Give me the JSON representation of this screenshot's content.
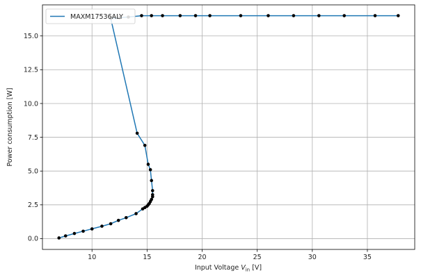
{
  "chart_data": {
    "type": "line",
    "title": "",
    "xlabel_prefix": "Input Voltage ",
    "xlabel_var": "V",
    "xlabel_sub": "in",
    "xlabel_suffix": " [V]",
    "ylabel": "Power consumption [W]",
    "xlim": [
      5.5,
      39.3
    ],
    "ylim": [
      -0.8,
      17.3
    ],
    "xticks": [
      10,
      15,
      20,
      25,
      30,
      35
    ],
    "xtick_labels": [
      "10",
      "15",
      "20",
      "25",
      "30",
      "35"
    ],
    "yticks": [
      0.0,
      2.5,
      5.0,
      7.5,
      10.0,
      12.5,
      15.0
    ],
    "ytick_labels": [
      "0.0",
      "2.5",
      "5.0",
      "7.5",
      "10.0",
      "12.5",
      "15.0"
    ],
    "grid": true,
    "legend_position": "top-left",
    "series": [
      {
        "name": "MAXM17536ALY",
        "color": "#1f77b4",
        "marker_color": "#000000",
        "x": [
          7.0,
          7.6,
          8.4,
          9.2,
          10.0,
          10.9,
          11.7,
          12.4,
          13.1,
          14.0,
          14.6,
          14.8,
          15.0,
          15.1,
          15.2,
          15.3,
          15.4,
          15.5,
          15.5,
          15.5,
          15.4,
          15.3,
          15.1,
          14.8,
          14.1,
          11.7,
          12.5,
          13.3,
          14.5,
          15.4,
          16.4,
          18.0,
          19.4,
          20.7,
          23.5,
          26.0,
          28.3,
          30.6,
          32.9,
          35.7,
          37.8
        ],
        "y": [
          0.05,
          0.2,
          0.38,
          0.55,
          0.72,
          0.92,
          1.1,
          1.35,
          1.55,
          1.85,
          2.2,
          2.3,
          2.4,
          2.5,
          2.6,
          2.75,
          2.9,
          3.1,
          3.25,
          3.55,
          4.3,
          5.1,
          5.5,
          6.9,
          7.8,
          16.3,
          16.35,
          16.4,
          16.5,
          16.5,
          16.5,
          16.5,
          16.5,
          16.5,
          16.5,
          16.5,
          16.5,
          16.5,
          16.5,
          16.5,
          16.5
        ]
      }
    ]
  }
}
